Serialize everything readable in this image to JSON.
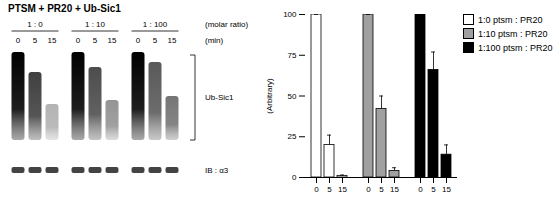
{
  "chart_data": {
    "type": "bar",
    "categories": [
      0,
      5,
      15
    ],
    "ylabel": "(Arbitrary)",
    "ylim": [
      0,
      100
    ],
    "yticks": [
      0,
      25,
      50,
      75,
      100
    ],
    "legend": "right",
    "series": [
      {
        "name": "1:0 ptsm : PR20",
        "color": "#ffffff",
        "values": [
          100,
          20,
          1
        ],
        "errors": [
          0,
          6,
          0.5
        ]
      },
      {
        "name": "1:10 ptsm : PR20",
        "color": "#a0a0a0",
        "values": [
          100,
          42,
          4
        ],
        "errors": [
          0,
          8,
          2
        ]
      },
      {
        "name": "1:100 ptsm : PR20",
        "color": "#000000",
        "values": [
          100,
          66,
          14
        ],
        "errors": [
          0,
          11,
          6
        ]
      }
    ]
  },
  "blot": {
    "title": "PTSM + PR20 + Ub-Sic1",
    "ratios": [
      "1 : 0",
      "1 : 10",
      "1 : 100"
    ],
    "ratio_label": "(molar ratio)",
    "times": [
      0,
      5,
      15
    ],
    "time_label": "(min)",
    "band_labels": [
      "Ub-Sic1",
      "IB : α3"
    ]
  }
}
